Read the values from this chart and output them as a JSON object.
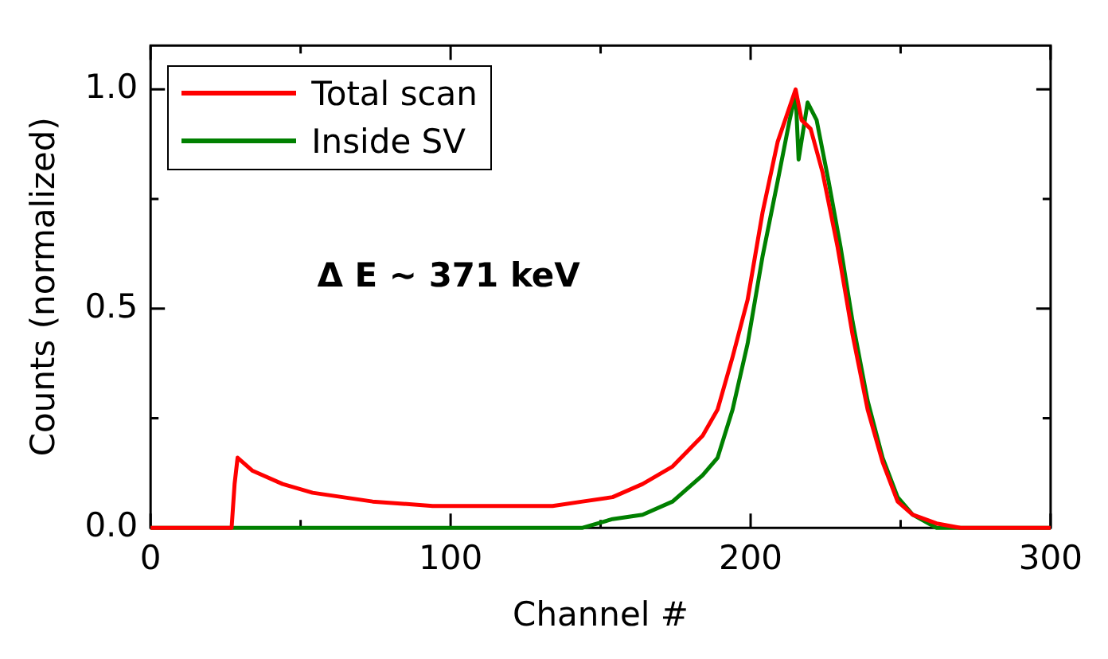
{
  "chart_data": {
    "type": "line",
    "xlabel": "Channel #",
    "ylabel": "Counts (normalized)",
    "xlim": [
      0,
      300
    ],
    "ylim": [
      0,
      1.1
    ],
    "xticks": [
      0,
      {
        "value": 50,
        "label": null
      },
      100,
      {
        "value": 150,
        "label": null
      },
      200,
      {
        "value": 250,
        "label": null
      },
      300
    ],
    "yticks": [
      {
        "value": 0,
        "label": "0.0"
      },
      {
        "value": 0.25,
        "label": null
      },
      0.5,
      {
        "value": 0.75,
        "label": null
      },
      {
        "value": 1,
        "label": "1.0"
      }
    ],
    "legend": "top left",
    "marker": "none",
    "line_style": "solid",
    "annotations": [
      "Δ E ~ 371 keV"
    ],
    "series": [
      {
        "name": "Total scan",
        "color": "#ff0000",
        "x": [
          0,
          27,
          28,
          29,
          34,
          44,
          54,
          74,
          94,
          114,
          134,
          144,
          154,
          164,
          174,
          184,
          189,
          194,
          199,
          204,
          209,
          212,
          215,
          217,
          220,
          224,
          229,
          234,
          239,
          244,
          249,
          254,
          262,
          270,
          300
        ],
        "values": [
          0,
          0,
          0.1,
          0.16,
          0.13,
          0.1,
          0.08,
          0.06,
          0.05,
          0.05,
          0.05,
          0.06,
          0.07,
          0.1,
          0.14,
          0.21,
          0.27,
          0.39,
          0.52,
          0.72,
          0.88,
          0.94,
          1.0,
          0.93,
          0.91,
          0.81,
          0.64,
          0.44,
          0.27,
          0.15,
          0.06,
          0.03,
          0.01,
          0,
          0
        ]
      },
      {
        "name": "Inside SV",
        "color": "#008000",
        "x": [
          0,
          130,
          144,
          154,
          164,
          174,
          184,
          189,
          194,
          199,
          204,
          209,
          213,
          215,
          216,
          219,
          222,
          226,
          230,
          234,
          239,
          244,
          249,
          254,
          262,
          300
        ],
        "values": [
          0,
          0,
          0,
          0.02,
          0.03,
          0.06,
          0.12,
          0.16,
          0.27,
          0.42,
          0.62,
          0.79,
          0.93,
          0.99,
          0.84,
          0.97,
          0.93,
          0.79,
          0.64,
          0.47,
          0.29,
          0.16,
          0.07,
          0.03,
          0,
          0
        ]
      }
    ]
  }
}
